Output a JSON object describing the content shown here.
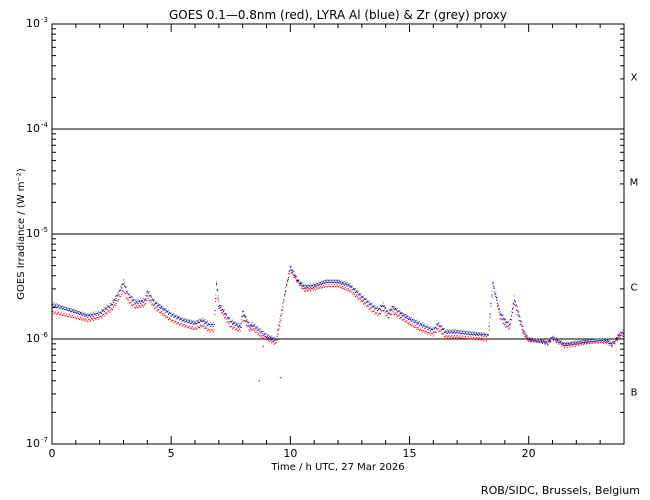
{
  "chart_data": {
    "type": "scatter",
    "title": "GOES 0.1—0.8nm (red), LYRA Al (blue) & Zr (grey) proxy",
    "xlabel": "Time / h UTC, 27 Mar 2026",
    "ylabel": "GOES Irradiance / (W m⁻²)",
    "xlim": [
      0,
      24
    ],
    "ylim": [
      1e-07,
      0.001
    ],
    "yscale": "log",
    "x_ticks": [
      0,
      5,
      10,
      15,
      20
    ],
    "x_tick_labels": [
      "0",
      "5",
      "10",
      "15",
      "20"
    ],
    "y_ticks": [
      1e-07,
      1e-06,
      1e-05,
      0.0001,
      0.001
    ],
    "y_tick_labels": [
      {
        "base": "10",
        "exp": "-7"
      },
      {
        "base": "10",
        "exp": "-6"
      },
      {
        "base": "10",
        "exp": "-5"
      },
      {
        "base": "10",
        "exp": "-4"
      },
      {
        "base": "10",
        "exp": "-3"
      }
    ],
    "flare_class_lines": [
      1e-06,
      1e-05,
      0.0001
    ],
    "flare_classes": [
      {
        "label": "X",
        "y": 0.000316
      },
      {
        "label": "M",
        "y": 3.16e-05
      },
      {
        "label": "C",
        "y": 3.16e-06
      },
      {
        "label": "B",
        "y": 3.16e-07
      }
    ],
    "credit": "ROB/SIDC, Brussels, Belgium",
    "series": [
      {
        "color": "#ff0000",
        "x": [
          0,
          0.5,
          1,
          1.5,
          2,
          2.5,
          2.8,
          3.0,
          3.2,
          3.5,
          3.9,
          4.0,
          4.3,
          4.7,
          5.0,
          5.5,
          6.0,
          6.3,
          6.6,
          6.8,
          6.9,
          7.0,
          7.5,
          7.9,
          8.0,
          8.3,
          8.4,
          8.6,
          8.8,
          9.0,
          9.4,
          9.6,
          9.8,
          10.0,
          10.3,
          10.6,
          11.0,
          11.5,
          12.0,
          12.5,
          13.0,
          13.5,
          13.7,
          13.9,
          14.1,
          14.3,
          14.7,
          15.0,
          15.5,
          16.0,
          16.2,
          16.5,
          17.0,
          17.5,
          18.0,
          18.3,
          18.5,
          18.8,
          19.0,
          19.2,
          19.4,
          19.6,
          19.8,
          20.0,
          20.5,
          20.8,
          21.0,
          21.5,
          22.0,
          22.5,
          23.0,
          23.3,
          23.5,
          23.8,
          24.0
        ],
        "y": [
          1.8e-06,
          1.7e-06,
          1.6e-06,
          1.5e-06,
          1.6e-06,
          1.9e-06,
          2.4e-06,
          2.9e-06,
          2.3e-06,
          2e-06,
          2.1e-06,
          2.5e-06,
          2e-06,
          1.7e-06,
          1.5e-06,
          1.35e-06,
          1.25e-06,
          1.35e-06,
          1.2e-06,
          1.2e-06,
          3.3e-06,
          2e-06,
          1.3e-06,
          1.2e-06,
          1.6e-06,
          1.2e-06,
          1.25e-06,
          1.15e-06,
          1.05e-06,
          1e-06,
          9e-07,
          1.5e-06,
          2.9e-06,
          4.5e-06,
          3.5e-06,
          2.9e-06,
          3e-06,
          3.2e-06,
          3.2e-06,
          2.9e-06,
          2.3e-06,
          1.8e-06,
          1.7e-06,
          1.9e-06,
          1.6e-06,
          1.8e-06,
          1.55e-06,
          1.4e-06,
          1.2e-06,
          1.1e-06,
          1.25e-06,
          1.05e-06,
          1.05e-06,
          1.02e-06,
          1e-06,
          9.8e-07,
          3.3e-06,
          1.6e-06,
          1.35e-06,
          1.25e-06,
          2.2e-06,
          1.5e-06,
          1.1e-06,
          9.6e-07,
          9.4e-07,
          9e-07,
          1e-06,
          8.5e-07,
          8.8e-07,
          9.2e-07,
          9.4e-07,
          9.2e-07,
          8.6e-07,
          1.05e-06,
          1.1e-06
        ]
      },
      {
        "color": "#808080",
        "x": [
          0,
          0.5,
          1,
          1.5,
          2,
          2.5,
          2.8,
          3.0,
          3.2,
          3.5,
          3.9,
          4.0,
          4.3,
          4.7,
          5.0,
          5.5,
          6.0,
          6.3,
          6.6,
          6.8,
          6.9,
          7.0,
          7.5,
          7.9,
          8.0,
          8.3,
          8.4,
          8.6,
          8.8,
          9.0,
          9.4,
          9.6,
          9.8,
          10.0,
          10.3,
          10.6,
          11.0,
          11.5,
          12.0,
          12.5,
          13.0,
          13.5,
          13.7,
          13.9,
          14.1,
          14.3,
          14.7,
          15.0,
          15.5,
          16.0,
          16.2,
          16.5,
          17.0,
          17.5,
          18.0,
          18.3,
          18.5,
          18.8,
          19.0,
          19.2,
          19.4,
          19.6,
          19.8,
          20.0,
          20.5,
          20.8,
          21.0,
          21.5,
          22.0,
          22.5,
          23.0,
          23.3,
          23.5,
          23.8,
          24.0
        ],
        "y": [
          2.2e-06,
          2e-06,
          1.85e-06,
          1.7e-06,
          1.8e-06,
          2.2e-06,
          2.8e-06,
          3.6e-06,
          2.7e-06,
          2.3e-06,
          2.4e-06,
          2.9e-06,
          2.3e-06,
          1.95e-06,
          1.75e-06,
          1.55e-06,
          1.45e-06,
          1.55e-06,
          1.4e-06,
          1.4e-06,
          3.5e-06,
          2.2e-06,
          1.5e-06,
          1.35e-06,
          1.85e-06,
          1.35e-06,
          1.4e-06,
          1.3e-06,
          1.2e-06,
          1.1e-06,
          1e-06,
          1.7e-06,
          3e-06,
          5e-06,
          3.7e-06,
          3.2e-06,
          3.3e-06,
          3.6e-06,
          3.6e-06,
          3.3e-06,
          2.6e-06,
          2.05e-06,
          1.95e-06,
          2.15e-06,
          1.8e-06,
          2.05e-06,
          1.75e-06,
          1.6e-06,
          1.4e-06,
          1.25e-06,
          1.42e-06,
          1.2e-06,
          1.2e-06,
          1.16e-06,
          1.12e-06,
          1.1e-06,
          3.5e-06,
          1.8e-06,
          1.55e-06,
          1.4e-06,
          2.5e-06,
          1.7e-06,
          1.2e-06,
          1e-06,
          9.8e-07,
          9.4e-07,
          1.05e-06,
          9e-07,
          9.3e-07,
          9.7e-07,
          9.9e-07,
          9.7e-07,
          9e-07,
          1.12e-06,
          1.2e-06
        ]
      },
      {
        "color": "#0000cc",
        "x": [
          0,
          0.5,
          1,
          1.5,
          2,
          2.5,
          2.8,
          3.0,
          3.2,
          3.5,
          3.9,
          4.0,
          4.3,
          4.7,
          5.0,
          5.5,
          6.0,
          6.3,
          6.6,
          6.8,
          6.9,
          7.0,
          7.5,
          7.9,
          8.0,
          8.3,
          8.4,
          8.6,
          8.8,
          9.0,
          9.4,
          9.6,
          9.8,
          10.0,
          10.3,
          10.6,
          11.0,
          11.5,
          12.0,
          12.5,
          13.0,
          13.5,
          13.7,
          13.9,
          14.1,
          14.3,
          14.7,
          15.0,
          15.5,
          16.0,
          16.2,
          16.5,
          17.0,
          17.5,
          18.0,
          18.3,
          18.5,
          18.8,
          19.0,
          19.2,
          19.4,
          19.6,
          19.8,
          20.0,
          20.5,
          20.8,
          21.0,
          21.5,
          22.0,
          22.5,
          23.0,
          23.3,
          23.5,
          23.8,
          24.0
        ],
        "y": [
          2.1e-06,
          1.95e-06,
          1.8e-06,
          1.65e-06,
          1.75e-06,
          2.1e-06,
          2.7e-06,
          3.4e-06,
          2.6e-06,
          2.2e-06,
          2.3e-06,
          2.8e-06,
          2.2e-06,
          1.9e-06,
          1.7e-06,
          1.5e-06,
          1.4e-06,
          1.5e-06,
          1.35e-06,
          1.35e-06,
          3.4e-06,
          2.1e-06,
          1.45e-06,
          1.3e-06,
          1.8e-06,
          1.3e-06,
          1.35e-06,
          1.25e-06,
          1.15e-06,
          1.05e-06,
          9.8e-07,
          1.65e-06,
          2.95e-06,
          4.8e-06,
          3.6e-06,
          3.1e-06,
          3.2e-06,
          3.5e-06,
          3.5e-06,
          3.2e-06,
          2.5e-06,
          2e-06,
          1.9e-06,
          2.1e-06,
          1.75e-06,
          2e-06,
          1.7e-06,
          1.55e-06,
          1.35e-06,
          1.2e-06,
          1.38e-06,
          1.16e-06,
          1.16e-06,
          1.12e-06,
          1.1e-06,
          1.08e-06,
          3.4e-06,
          1.75e-06,
          1.5e-06,
          1.35e-06,
          2.4e-06,
          1.65e-06,
          1.15e-06,
          1e-06,
          9.6e-07,
          9.2e-07,
          1.03e-06,
          8.9e-07,
          9.2e-07,
          9.5e-07,
          9.8e-07,
          9.6e-07,
          8.9e-07,
          1.1e-06,
          1.18e-06
        ]
      },
      {
        "color": "#ff0000",
        "x": [
          8.7,
          9.6,
          8.85
        ],
        "y": [
          4e-07,
          4.3e-07,
          8.5e-07
        ]
      }
    ]
  }
}
